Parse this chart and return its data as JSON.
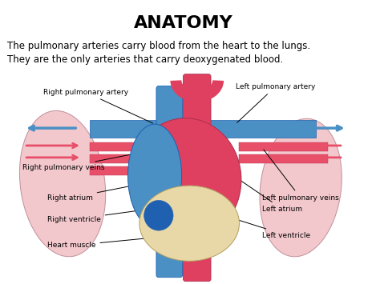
{
  "title": "ANATOMY",
  "line1": "The pulmonary arteries carry blood from the heart to the lungs.",
  "line2": "They are the only arteries that carry deoxygenated blood.",
  "bg_color": "#ffffff",
  "title_fontsize": 16,
  "text_fontsize": 8.5,
  "label_fontsize": 6.5,
  "blue_color": "#4a90c4",
  "red_color": "#e8506a",
  "lung_color": "#f2c8cc",
  "heart_red": "#e04060",
  "tan_color": "#e8d8a8",
  "dark_blue": "#2060b0",
  "label_color": "#111111"
}
